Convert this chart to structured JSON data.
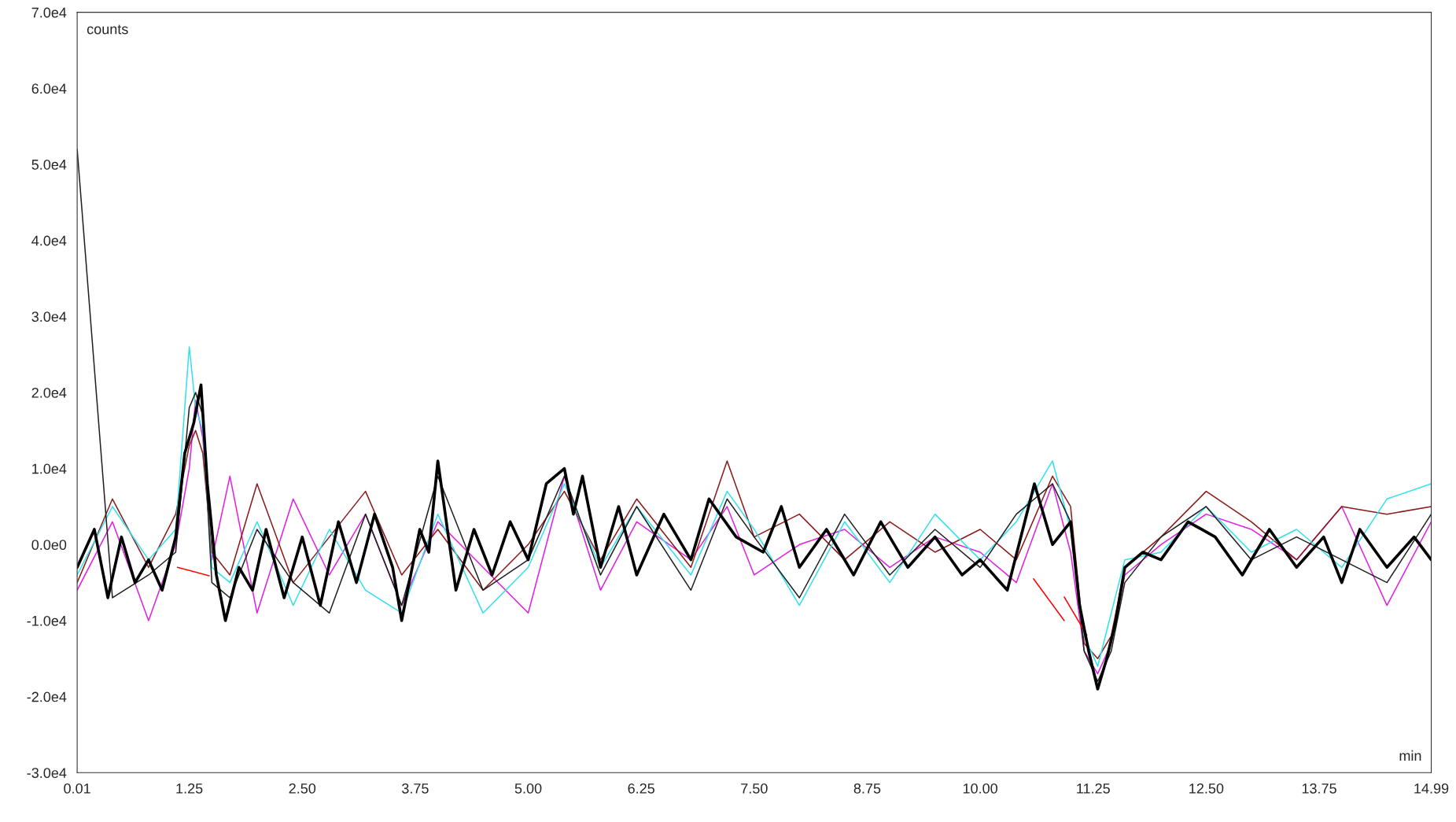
{
  "chart_data": {
    "type": "line",
    "xlabel": "min",
    "ylabel": "counts",
    "grid": false,
    "legend": false,
    "marker": "none",
    "line_style": "solid",
    "xlim": [
      0.01,
      14.99
    ],
    "xticks": [
      0.01,
      1.25,
      {
        "value": 2.5,
        "label": "2.50"
      },
      3.75,
      {
        "value": 5.0,
        "label": "5.00"
      },
      6.25,
      {
        "value": 7.5,
        "label": "7.50"
      },
      8.75,
      {
        "value": 10.0,
        "label": "10.00"
      },
      11.25,
      {
        "value": 12.5,
        "label": "12.50"
      },
      13.75,
      14.99
    ],
    "ylim": [
      -30000,
      70000
    ],
    "yticks": [
      {
        "value": -30000,
        "label": "-3.0e4"
      },
      {
        "value": -20000,
        "label": "-2.0e4"
      },
      {
        "value": -10000,
        "label": "-1.0e4"
      },
      {
        "value": 0,
        "label": "0.0e0"
      },
      {
        "value": 10000,
        "label": "1.0e4"
      },
      {
        "value": 20000,
        "label": "2.0e4"
      },
      {
        "value": 30000,
        "label": "3.0e4"
      },
      {
        "value": 40000,
        "label": "4.0e4"
      },
      {
        "value": 50000,
        "label": "5.0e4"
      },
      {
        "value": 60000,
        "label": "6.0e4"
      },
      {
        "value": 70000,
        "label": "7.0e4"
      }
    ],
    "x": [
      0.01,
      0.4,
      0.8,
      1.1,
      1.25,
      1.32,
      1.4,
      1.5,
      1.7,
      2.0,
      2.4,
      2.8,
      3.2,
      3.6,
      4.0,
      4.5,
      5.0,
      5.4,
      5.8,
      6.2,
      6.8,
      7.2,
      7.5,
      8.0,
      8.5,
      9.0,
      9.5,
      10.0,
      10.4,
      10.8,
      11.0,
      11.15,
      11.3,
      11.45,
      11.6,
      12.0,
      12.5,
      13.0,
      13.5,
      14.0,
      14.5,
      14.99
    ],
    "series": [
      {
        "color": "#e020e0",
        "values": [
          -6000,
          3000,
          -10000,
          0,
          10000,
          19000,
          14000,
          -2000,
          9000,
          -9000,
          6000,
          -4000,
          4000,
          -8000,
          3000,
          -3000,
          -9000,
          9000,
          -6000,
          3000,
          -2000,
          5000,
          -4000,
          0,
          2000,
          -3000,
          1000,
          -1000,
          -5000,
          8000,
          -1000,
          -14000,
          -17000,
          -13000,
          -4000,
          0,
          4000,
          2000,
          -2000,
          5000,
          -8000,
          3000
        ]
      },
      {
        "color": "#8b1a1a",
        "values": [
          -5000,
          6000,
          -3000,
          4000,
          13000,
          15000,
          12000,
          -1000,
          -4000,
          8000,
          -5000,
          1000,
          7000,
          -4000,
          2000,
          -6000,
          0,
          7000,
          -2000,
          6000,
          -3000,
          11000,
          1000,
          4000,
          -2000,
          3000,
          -1000,
          2000,
          -2000,
          9000,
          5000,
          -13000,
          -15000,
          -12000,
          -3000,
          1000,
          7000,
          3000,
          -2000,
          5000,
          4000,
          5000
        ]
      },
      {
        "color": "#33e0ee",
        "values": [
          -4000,
          5000,
          -2000,
          2000,
          26000,
          18000,
          15000,
          -3000,
          -5000,
          3000,
          -8000,
          2000,
          -6000,
          -9000,
          4000,
          -9000,
          -3000,
          8000,
          -3000,
          5000,
          -4000,
          7000,
          2000,
          -8000,
          3000,
          -5000,
          4000,
          -2000,
          3000,
          11000,
          2000,
          -12000,
          -16000,
          -9000,
          -2000,
          -1000,
          5000,
          -1000,
          2000,
          -3000,
          6000,
          8000
        ]
      },
      {
        "color": "#202020",
        "values": [
          52000,
          -7000,
          -4000,
          -1000,
          18000,
          20000,
          17000,
          -5000,
          -7000,
          2000,
          -5000,
          -9000,
          4000,
          -8000,
          9000,
          -6000,
          -2000,
          9000,
          -4000,
          5000,
          -6000,
          6000,
          1000,
          -7000,
          4000,
          -4000,
          2000,
          -3000,
          4000,
          8000,
          3000,
          -14000,
          -18000,
          -14000,
          -5000,
          1000,
          5000,
          -2000,
          1000,
          -2000,
          -5000,
          4000
        ]
      },
      {
        "color": "#ff0000",
        "x": [
          1.12,
          1.47
        ],
        "values": [
          -3000,
          -4100
        ]
      },
      {
        "color": "#ff0000",
        "x": [
          10.59,
          10.93
        ],
        "values": [
          -4500,
          -10000
        ]
      },
      {
        "color": "#ff0000",
        "x": [
          10.93,
          11.18
        ],
        "values": [
          -6900,
          -11900
        ]
      },
      {
        "color": "#000000",
        "x": [
          0.01,
          0.2,
          0.35,
          0.5,
          0.65,
          0.8,
          0.95,
          1.1,
          1.2,
          1.3,
          1.38,
          1.45,
          1.55,
          1.65,
          1.8,
          1.95,
          2.1,
          2.3,
          2.5,
          2.7,
          2.9,
          3.1,
          3.3,
          3.5,
          3.6,
          3.8,
          3.9,
          4.0,
          4.2,
          4.4,
          4.6,
          4.8,
          5.0,
          5.2,
          5.4,
          5.5,
          5.6,
          5.8,
          6.0,
          6.2,
          6.5,
          6.8,
          7.0,
          7.3,
          7.6,
          7.8,
          8.0,
          8.3,
          8.6,
          8.9,
          9.2,
          9.5,
          9.8,
          10.0,
          10.3,
          10.6,
          10.8,
          11.0,
          11.1,
          11.2,
          11.3,
          11.4,
          11.5,
          11.6,
          11.8,
          12.0,
          12.3,
          12.6,
          12.9,
          13.2,
          13.5,
          13.8,
          14.0,
          14.2,
          14.5,
          14.8,
          14.99
        ],
        "values": [
          -3000,
          2000,
          -7000,
          1000,
          -5000,
          -2000,
          -6000,
          1000,
          12000,
          16000,
          21000,
          8000,
          -4000,
          -10000,
          -3000,
          -6000,
          2000,
          -7000,
          1000,
          -8000,
          3000,
          -5000,
          4000,
          -3000,
          -10000,
          2000,
          -1000,
          11000,
          -6000,
          2000,
          -4000,
          3000,
          -2000,
          8000,
          10000,
          4000,
          9000,
          -3000,
          5000,
          -4000,
          4000,
          -2000,
          6000,
          1000,
          -1000,
          5000,
          -3000,
          2000,
          -4000,
          3000,
          -3000,
          1000,
          -4000,
          -2000,
          -6000,
          8000,
          0,
          3000,
          -8000,
          -14000,
          -19000,
          -15000,
          -10000,
          -3000,
          -1000,
          -2000,
          3000,
          1000,
          -4000,
          2000,
          -3000,
          1000,
          -5000,
          2000,
          -3000,
          1000,
          -2000
        ]
      }
    ]
  }
}
